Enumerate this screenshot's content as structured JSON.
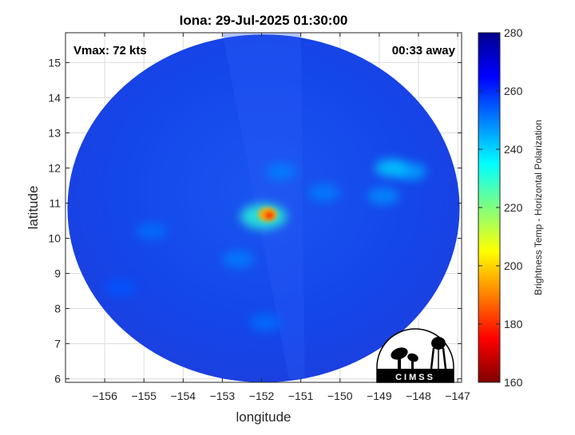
{
  "chart_data": {
    "type": "heatmap",
    "title": "Iona: 29-Jul-2025 01:30:00",
    "xlabel": "longitude",
    "ylabel": "latitude",
    "xlim": [
      -157.0,
      -146.9
    ],
    "ylim": [
      5.9,
      15.85
    ],
    "x_ticks": [
      -156,
      -155,
      -154,
      -153,
      -152,
      -151,
      -150,
      -149,
      -148,
      -147
    ],
    "y_ticks": [
      6,
      7,
      8,
      9,
      10,
      11,
      12,
      13,
      14,
      15
    ],
    "grid": true,
    "colorbar": {
      "label": "Brightness Temp - Horizontal Polarization",
      "min": 160,
      "max": 280,
      "ticks": [
        160,
        180,
        200,
        220,
        240,
        260,
        280
      ],
      "colormap": [
        "#7f0000",
        "#ff0000",
        "#ff8000",
        "#ffff00",
        "#80ff80",
        "#00ffff",
        "#0080ff",
        "#0000ff",
        "#00008f"
      ]
    },
    "annotations": {
      "vmax": "Vmax: 72 kts",
      "time_offset": "00:33 away"
    },
    "swath": {
      "center": [
        -151.95,
        10.85
      ],
      "radius_lon": 5.0,
      "radius_lat": 4.95,
      "background_temp": 263
    },
    "features": [
      {
        "lon": -151.8,
        "lat": 10.65,
        "temp": 178
      },
      {
        "lon": -151.85,
        "lat": 10.68,
        "temp": 195
      },
      {
        "lon": -151.95,
        "lat": 10.62,
        "temp": 230
      },
      {
        "lon": -148.7,
        "lat": 12.0,
        "temp": 240
      },
      {
        "lon": -148.2,
        "lat": 11.9,
        "temp": 245
      },
      {
        "lon": -148.9,
        "lat": 11.2,
        "temp": 248
      },
      {
        "lon": -151.5,
        "lat": 11.9,
        "temp": 250
      },
      {
        "lon": -150.4,
        "lat": 11.3,
        "temp": 250
      },
      {
        "lon": -152.6,
        "lat": 9.4,
        "temp": 250
      },
      {
        "lon": -154.8,
        "lat": 10.2,
        "temp": 252
      },
      {
        "lon": -151.9,
        "lat": 7.6,
        "temp": 252
      },
      {
        "lon": -155.6,
        "lat": 8.6,
        "temp": 255
      }
    ],
    "logo": {
      "text": "CIMSS"
    }
  }
}
